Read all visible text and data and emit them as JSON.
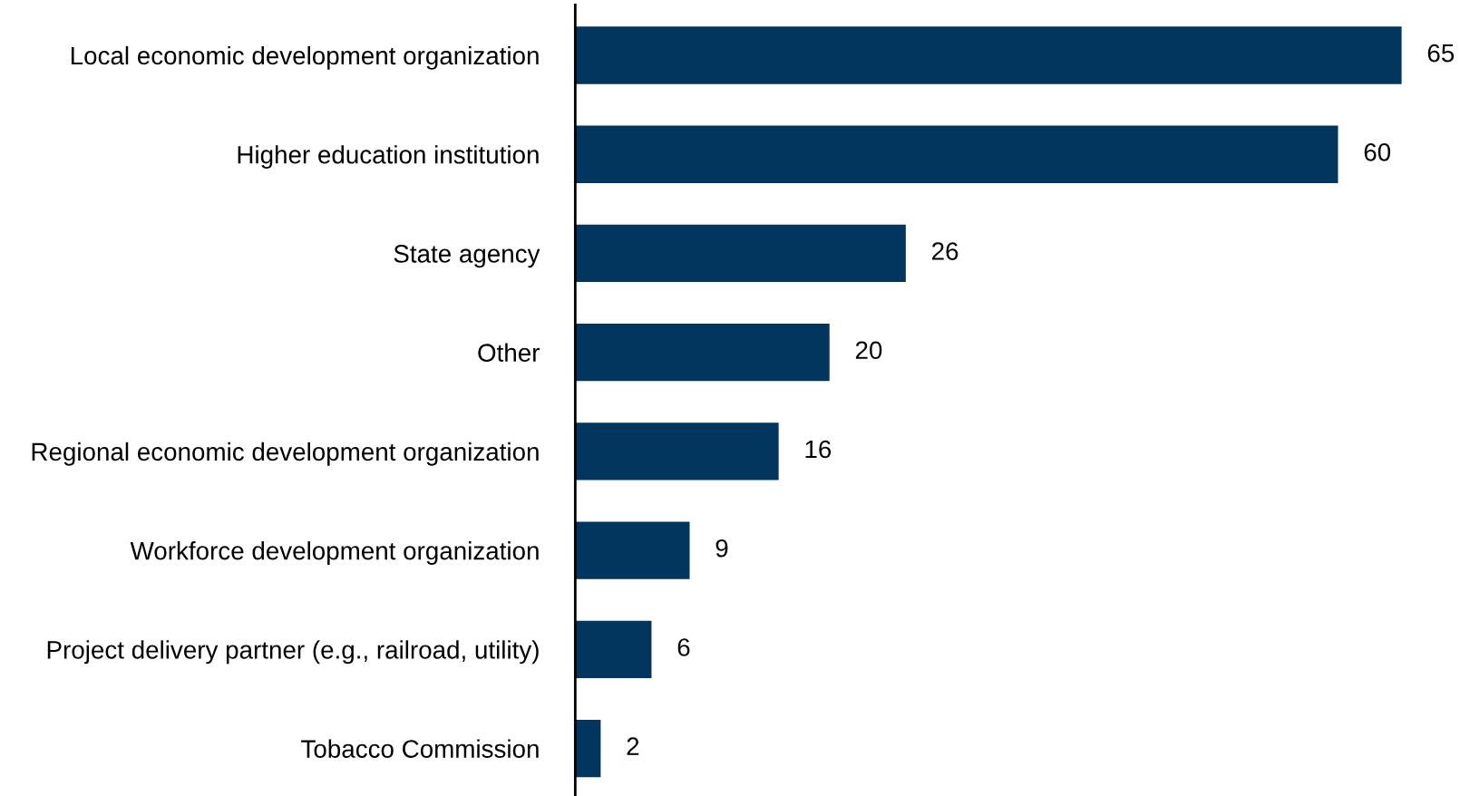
{
  "chart_data": {
    "type": "bar",
    "orientation": "horizontal",
    "categories": [
      "Local economic development organization",
      "Higher education institution",
      "State agency",
      "Other",
      "Regional economic development organization",
      "Workforce development organization",
      "Project delivery partner (e.g., railroad, utility)",
      "Tobacco Commission"
    ],
    "values": [
      65,
      60,
      26,
      20,
      16,
      9,
      6,
      2
    ],
    "color": "#03365f",
    "data_labels": true,
    "grid": false,
    "legend": false
  }
}
